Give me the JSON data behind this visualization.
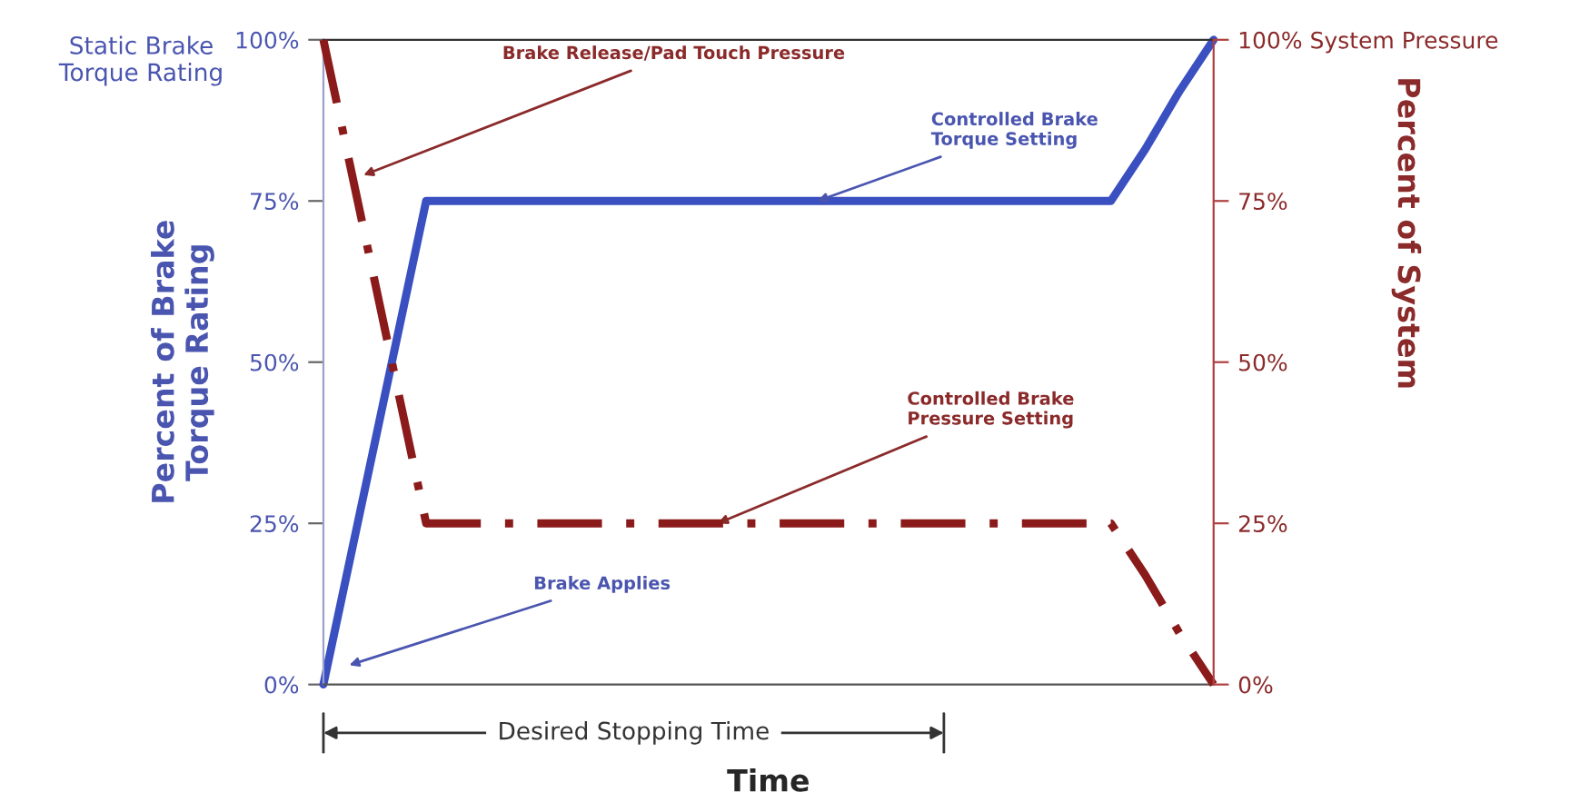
{
  "chart_data": {
    "type": "line",
    "xlabel": "Time",
    "ylabel": "Percent of Brake\nTorque Rating",
    "y2label": "Percent of System",
    "categories": [
      null,
      null,
      null,
      null,
      null,
      null,
      null,
      null,
      null,
      null,
      null,
      null,
      null,
      null,
      null,
      null,
      null,
      null,
      null,
      null,
      null,
      null,
      null,
      null,
      null,
      null,
      null
    ],
    "ylim": [
      0,
      100
    ],
    "yticks": [
      {
        "value": 0,
        "label": "0%"
      },
      {
        "value": 25,
        "label": "25%"
      },
      {
        "value": 50,
        "label": "50%"
      },
      {
        "value": 75,
        "label": "75%"
      },
      {
        "value": 100,
        "label": "100%"
      }
    ],
    "y2lim": [
      0,
      100
    ],
    "y2ticks": [
      {
        "value": 0,
        "label": "0%"
      },
      {
        "value": 25,
        "label": "25%"
      },
      {
        "value": 50,
        "label": "50%"
      },
      {
        "value": 75,
        "label": "75%"
      },
      {
        "value": 100,
        "label": "100% System Pressure"
      }
    ],
    "series": [
      {
        "color": "#3a4fc0",
        "values": [
          0,
          25,
          50,
          75,
          75,
          75,
          75,
          75,
          75,
          75,
          75,
          75,
          75,
          75,
          75,
          75,
          75,
          75,
          75,
          75,
          75,
          75,
          75,
          75,
          83,
          92,
          100
        ],
        "line_style": "solid"
      },
      {
        "color": "#8b1a1a",
        "axis": "y2",
        "values": [
          100,
          75,
          50,
          25,
          25,
          25,
          25,
          25,
          25,
          25,
          25,
          25,
          25,
          25,
          25,
          25,
          25,
          25,
          25,
          25,
          25,
          25,
          25,
          25,
          17,
          8,
          0
        ],
        "line_style": "dashed"
      }
    ],
    "annotations": [
      "Brake Release/Pad Touch Pressure",
      "Controlled Brake\nTorque Setting",
      "Controlled Brake\nPressure Setting",
      "Brake Applies",
      "Static Brake\nTorque Rating",
      "Desired Stopping Time"
    ],
    "grid": false,
    "legend": false
  }
}
